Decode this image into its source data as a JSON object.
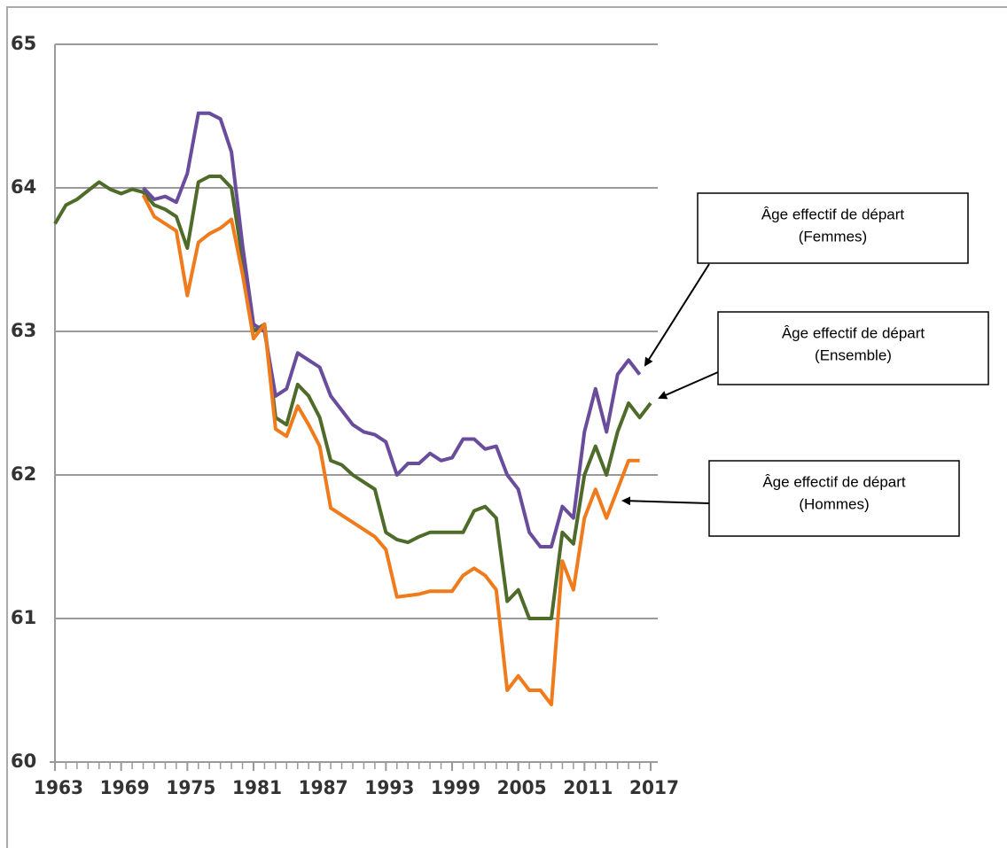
{
  "chart_data": {
    "type": "line",
    "x": [
      1963,
      1964,
      1965,
      1966,
      1967,
      1968,
      1969,
      1970,
      1971,
      1972,
      1973,
      1974,
      1975,
      1976,
      1977,
      1978,
      1979,
      1980,
      1981,
      1982,
      1983,
      1984,
      1985,
      1986,
      1987,
      1988,
      1989,
      1990,
      1991,
      1992,
      1993,
      1994,
      1995,
      1996,
      1997,
      1998,
      1999,
      2000,
      2001,
      2002,
      2003,
      2004,
      2005,
      2006,
      2007,
      2008,
      2009,
      2010,
      2011,
      2012,
      2013,
      2014,
      2015,
      2016,
      2017
    ],
    "xlim": [
      1963,
      2017
    ],
    "xticks": [
      1963,
      1969,
      1975,
      1981,
      1987,
      1993,
      1999,
      2005,
      2011,
      2017
    ],
    "ylim": [
      60,
      65
    ],
    "yticks": [
      60,
      61,
      62,
      63,
      64,
      65
    ],
    "grid": true,
    "series": [
      {
        "name": "Âge effectif de départ (Ensemble)",
        "color": "#4e6b2a",
        "values": [
          63.75,
          63.88,
          63.92,
          63.98,
          64.04,
          63.99,
          63.96,
          63.99,
          63.97,
          63.88,
          63.85,
          63.8,
          63.58,
          64.04,
          64.08,
          64.08,
          64.0,
          63.5,
          63.0,
          63.05,
          62.4,
          62.35,
          62.63,
          62.55,
          62.4,
          62.1,
          62.07,
          62.0,
          61.95,
          61.9,
          61.6,
          61.55,
          61.53,
          61.57,
          61.6,
          61.6,
          61.6,
          61.6,
          61.75,
          61.78,
          61.7,
          61.12,
          61.2,
          61.0,
          61.0,
          61.0,
          61.6,
          61.52,
          62.0,
          62.2,
          62.0,
          62.3,
          62.5,
          62.4,
          62.5
        ]
      },
      {
        "name": "Âge effectif de départ (Femmes)",
        "color": "#6a4c9c",
        "values": [
          null,
          null,
          null,
          null,
          null,
          null,
          null,
          null,
          64.0,
          63.92,
          63.94,
          63.9,
          64.1,
          64.52,
          64.52,
          64.48,
          64.25,
          63.6,
          63.05,
          63.0,
          62.55,
          62.6,
          62.85,
          62.8,
          62.75,
          62.55,
          62.45,
          62.35,
          62.3,
          62.28,
          62.23,
          62.0,
          62.08,
          62.08,
          62.15,
          62.1,
          62.12,
          62.25,
          62.25,
          62.18,
          62.2,
          62.0,
          61.9,
          61.6,
          61.5,
          61.5,
          61.78,
          61.7,
          62.3,
          62.6,
          62.3,
          62.7,
          62.8,
          62.7,
          null
        ]
      },
      {
        "name": "Âge effectif de départ (Hommes)",
        "color": "#f07b1c",
        "values": [
          null,
          null,
          null,
          null,
          null,
          null,
          null,
          null,
          63.95,
          63.8,
          63.75,
          63.7,
          63.25,
          63.62,
          63.68,
          63.72,
          63.78,
          63.4,
          62.95,
          63.05,
          62.32,
          62.27,
          62.48,
          62.35,
          62.2,
          61.77,
          61.72,
          61.67,
          61.62,
          61.57,
          61.48,
          61.15,
          61.16,
          61.17,
          61.19,
          61.19,
          61.19,
          61.3,
          61.35,
          61.3,
          61.2,
          60.5,
          60.6,
          60.5,
          60.5,
          60.4,
          61.4,
          61.2,
          61.7,
          61.9,
          61.7,
          61.9,
          62.1,
          62.1,
          null
        ]
      }
    ],
    "annotations": [
      {
        "text": [
          "Âge effectif de départ",
          "(Femmes)"
        ]
      },
      {
        "text": [
          "Âge effectif de départ",
          "(Ensemble)"
        ]
      },
      {
        "text": [
          "Âge effectif de départ",
          "(Hommes)"
        ]
      }
    ]
  }
}
